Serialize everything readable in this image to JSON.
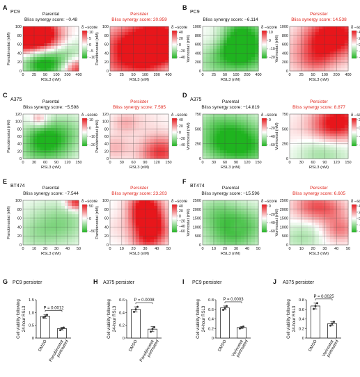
{
  "figure": {
    "panels": [
      {
        "letter": "A",
        "cell_line": "PC9",
        "xlabel": "RSL3 (nM)",
        "ylabel": "Panobinostat (nM)",
        "parent": {
          "title": "Parental",
          "score_label": "Bliss synergy score: −0.48"
        },
        "pers": {
          "title": "Persister",
          "score_label": "Bliss synergy score: 20.959"
        },
        "xticks": [
          "0",
          "25",
          "50",
          "100",
          "200",
          "400"
        ],
        "yticks": [
          "0",
          "20",
          "40",
          "60",
          "80",
          "100"
        ],
        "parent_legend": {
          "title": "δ –score",
          "ticks": [
            "10",
            "5",
            "0",
            "−5",
            "−10"
          ],
          "range": [
            -12,
            12
          ]
        },
        "pers_legend": {
          "title": "δ –score",
          "ticks": [
            "40",
            "20",
            "0",
            "−20",
            "−40"
          ],
          "range": [
            -45,
            45
          ]
        },
        "parent_blobs": [
          [
            0.12,
            0.85,
            0.3,
            25
          ],
          [
            0.95,
            0.05,
            0.2,
            15
          ],
          [
            0.5,
            0.6,
            0.25,
            6
          ],
          [
            0.3,
            0.2,
            0.25,
            -12
          ],
          [
            0.75,
            0.25,
            0.3,
            -10
          ]
        ],
        "pers_blobs": [
          [
            0.35,
            0.55,
            0.35,
            45
          ],
          [
            0.85,
            0.85,
            0.3,
            40
          ],
          [
            0.6,
            0.2,
            0.3,
            30
          ],
          [
            0.1,
            0.1,
            0.15,
            10
          ],
          [
            0.95,
            0.45,
            0.2,
            35
          ]
        ]
      },
      {
        "letter": "B",
        "cell_line": "PC9",
        "xlabel": "RSL3 (nM)",
        "ylabel": "Vorinostat (nM)",
        "parent": {
          "title": "",
          "score_label": "Bliss synergy score: −6.114"
        },
        "pers": {
          "title": "Persister",
          "score_label": "Bliss synergy score: 14.538"
        },
        "xticks": [
          "0",
          "25",
          "50",
          "100",
          "200",
          "400"
        ],
        "yticks": [
          "0",
          "200",
          "400",
          "600",
          "800",
          "1000"
        ],
        "parent_legend": {
          "title": "δ –score",
          "ticks": [
            "10",
            "0",
            "−10",
            "−20"
          ],
          "range": [
            -25,
            15
          ]
        },
        "pers_legend": {
          "title": "δ –score",
          "ticks": [
            "40",
            "20",
            "0",
            "−20",
            "−40"
          ],
          "range": [
            -45,
            45
          ]
        },
        "parent_blobs": [
          [
            0.7,
            0.8,
            0.3,
            -25
          ],
          [
            0.8,
            0.3,
            0.3,
            -18
          ],
          [
            0.25,
            0.2,
            0.3,
            -12
          ],
          [
            0.3,
            0.75,
            0.2,
            5
          ],
          [
            0.55,
            0.5,
            0.2,
            -8
          ]
        ],
        "pers_blobs": [
          [
            0.8,
            0.85,
            0.35,
            40
          ],
          [
            0.6,
            0.6,
            0.3,
            25
          ],
          [
            0.2,
            0.3,
            0.3,
            10
          ],
          [
            0.45,
            0.2,
            0.2,
            15
          ]
        ]
      },
      {
        "letter": "C",
        "cell_line": "A375",
        "xlabel": "RSL3 (nM)",
        "ylabel": "Panobinostat (nM)",
        "parent": {
          "title": "Parental",
          "score_label": "Bliss synergy score: −5.598"
        },
        "pers": {
          "title": "Persister",
          "score_label": "Bliss synergy score: 7.585"
        },
        "xticks": [
          "0",
          "30",
          "60",
          "90",
          "120",
          "150"
        ],
        "yticks": [
          "0",
          "20",
          "40",
          "60",
          "80",
          "100",
          "120"
        ],
        "parent_legend": {
          "title": "δ –score",
          "ticks": [
            "10",
            "0",
            "−10",
            "−20"
          ],
          "range": [
            -25,
            15
          ]
        },
        "pers_legend": {
          "title": "δ –score",
          "ticks": [
            "40",
            "20",
            "0",
            "−20",
            "−40"
          ],
          "range": [
            -45,
            45
          ]
        },
        "parent_blobs": [
          [
            0.3,
            0.85,
            0.12,
            12
          ],
          [
            0.3,
            0.5,
            0.25,
            -15
          ],
          [
            0.75,
            0.6,
            0.3,
            -12
          ],
          [
            0.5,
            0.2,
            0.3,
            -14
          ],
          [
            0.1,
            0.1,
            0.2,
            -5
          ]
        ],
        "pers_blobs": [
          [
            0.85,
            0.15,
            0.25,
            40
          ],
          [
            0.1,
            0.25,
            0.2,
            15
          ],
          [
            0.5,
            0.75,
            0.3,
            8
          ],
          [
            0.25,
            0.8,
            0.15,
            12
          ],
          [
            0.5,
            0.4,
            0.3,
            -5
          ]
        ]
      },
      {
        "letter": "D",
        "cell_line": "A375",
        "xlabel": "RSL3 (nM)",
        "ylabel": "Vorinostat (nM)",
        "parent": {
          "title": "Parental",
          "score_label": "Bliss synergy score: −14.819"
        },
        "pers": {
          "title": "Persister",
          "score_label": "Bliss synergy score: 8.877"
        },
        "xticks": [
          "0",
          "30",
          "60",
          "90",
          "120",
          "150"
        ],
        "yticks": [
          "0",
          "250",
          "500",
          "750"
        ],
        "parent_legend": {
          "title": "δ –score",
          "ticks": [
            "0",
            "−20",
            "−40",
            "−60"
          ],
          "range": [
            -60,
            10
          ]
        },
        "pers_legend": {
          "title": "δ –score",
          "ticks": [
            "20",
            "0",
            "−20",
            "−40"
          ],
          "range": [
            -45,
            45
          ]
        },
        "parent_blobs": [
          [
            0.55,
            0.55,
            0.4,
            -45
          ],
          [
            0.85,
            0.2,
            0.3,
            -30
          ],
          [
            0.15,
            0.85,
            0.2,
            -10
          ],
          [
            0.3,
            0.3,
            0.3,
            -25
          ]
        ],
        "pers_blobs": [
          [
            0.85,
            0.85,
            0.3,
            45
          ],
          [
            0.55,
            0.25,
            0.35,
            -25
          ],
          [
            0.2,
            0.5,
            0.3,
            10
          ],
          [
            0.65,
            0.6,
            0.25,
            20
          ]
        ]
      },
      {
        "letter": "E",
        "cell_line": "BT474",
        "xlabel": "RSL3 (nM)",
        "ylabel": "Panobinostat (nM)",
        "parent": {
          "title": "Parental",
          "score_label": "Bliss synergy score: −7.544"
        },
        "pers": {
          "title": "Persister",
          "score_label": "Bliss synergy score: 23.203"
        },
        "xticks": [
          "0",
          "10",
          "20",
          "30",
          "40",
          "50"
        ],
        "yticks": [
          "0",
          "20",
          "40",
          "60",
          "80",
          "100"
        ],
        "parent_legend": {
          "title": "δ –score",
          "ticks": [
            "50",
            "0",
            "−50"
          ],
          "range": [
            -60,
            60
          ]
        },
        "pers_legend": {
          "title": "δ –score",
          "ticks": [
            "40",
            "20",
            "0",
            "−20",
            "−40",
            "−60"
          ],
          "range": [
            -60,
            45
          ]
        },
        "parent_blobs": [
          [
            0.95,
            0.95,
            0.12,
            60
          ],
          [
            0.5,
            0.45,
            0.4,
            -20
          ],
          [
            0.2,
            0.2,
            0.3,
            -12
          ],
          [
            0.8,
            0.5,
            0.3,
            -15
          ]
        ],
        "pers_blobs": [
          [
            0.65,
            0.55,
            0.2,
            55
          ],
          [
            0.6,
            0.9,
            0.2,
            45
          ],
          [
            0.65,
            0.15,
            0.2,
            40
          ],
          [
            0.15,
            0.4,
            0.2,
            5
          ],
          [
            0.9,
            0.3,
            0.15,
            10
          ]
        ]
      },
      {
        "letter": "F",
        "cell_line": "BT474",
        "xlabel": "RSL3 (nM)",
        "ylabel": "Vorinostat (nM)",
        "parent": {
          "title": "Parental",
          "score_label": "Bliss synergy score: −15.596"
        },
        "pers": {
          "title": "Persister",
          "score_label": "Bliss synergy score: 6.605"
        },
        "xticks": [
          "0",
          "10",
          "20",
          "30",
          "40",
          "50"
        ],
        "yticks": [
          "0",
          "500",
          "1000",
          "1500",
          "2000",
          "2500"
        ],
        "parent_legend": {
          "title": "δ –score",
          "ticks": [
            "0",
            "−20",
            "−40",
            "−60"
          ],
          "range": [
            -60,
            10
          ]
        },
        "pers_legend": {
          "title": "δ –score",
          "ticks": [
            "40",
            "20",
            "0",
            "−20",
            "−40"
          ],
          "range": [
            -45,
            45
          ]
        },
        "parent_blobs": [
          [
            0.5,
            0.25,
            0.35,
            -40
          ],
          [
            0.25,
            0.75,
            0.3,
            -25
          ],
          [
            0.85,
            0.5,
            0.3,
            -20
          ],
          [
            0.6,
            0.4,
            0.1,
            8
          ]
        ],
        "pers_blobs": [
          [
            0.4,
            0.85,
            0.25,
            30
          ],
          [
            0.85,
            0.35,
            0.2,
            25
          ],
          [
            0.75,
            0.8,
            0.2,
            15
          ],
          [
            0.2,
            0.15,
            0.25,
            -15
          ],
          [
            0.35,
            0.4,
            0.2,
            -5
          ]
        ]
      }
    ],
    "barcharts": [
      {
        "letter": "G",
        "title": "PC9 persister",
        "ylabel": [
          "Cell viability following",
          "24-hour RSL3"
        ],
        "yticks": [
          "0",
          "0.5",
          "1.0",
          "1.5"
        ],
        "ymax": 1.5,
        "categories": [
          [
            "DMSO"
          ],
          [
            "Panobinostat",
            "pretreated"
          ]
        ],
        "values": [
          0.85,
          0.37
        ],
        "errors": [
          0.07,
          0.05
        ],
        "points": [
          [
            0.8,
            0.85,
            0.91
          ],
          [
            0.31,
            0.37,
            0.41
          ]
        ],
        "pvalue": "P = 0.0012"
      },
      {
        "letter": "H",
        "title": "A375 persister",
        "ylabel": [
          "Cell viability following",
          "24-hour RSL3"
        ],
        "yticks": [
          "0",
          "0.2",
          "0.4",
          "0.6"
        ],
        "ymax": 0.6,
        "categories": [
          [
            "DMSO"
          ],
          [
            "Panobinostat",
            "pretreated"
          ]
        ],
        "values": [
          0.45,
          0.14
        ],
        "errors": [
          0.04,
          0.04
        ],
        "points": [
          [
            0.41,
            0.45,
            0.49
          ],
          [
            0.1,
            0.14,
            0.17
          ]
        ],
        "pvalue": "P = 0.0008"
      },
      {
        "letter": "I",
        "title": "PC9 persister",
        "ylabel": [
          "Cell viability following",
          "24-hour RSL3"
        ],
        "yticks": [
          "0",
          "0.2",
          "0.4",
          "0.6",
          "0.8"
        ],
        "ymax": 0.8,
        "categories": [
          [
            "DMSO"
          ],
          [
            "Vorinostat",
            "pretreated"
          ]
        ],
        "values": [
          0.63,
          0.22
        ],
        "errors": [
          0.04,
          0.02
        ],
        "points": [
          [
            0.59,
            0.63,
            0.67
          ],
          [
            0.2,
            0.22,
            0.24
          ]
        ],
        "pvalue": "P = 0.0003"
      },
      {
        "letter": "J",
        "title": "A375 persister",
        "ylabel": [
          "Cell viability following",
          "24-hour RSL3"
        ],
        "yticks": [
          "0",
          "0.2",
          "0.4",
          "0.6",
          "0.8"
        ],
        "ymax": 0.8,
        "categories": [
          [
            "DMSO"
          ],
          [
            "Vorinostat",
            "pretreated"
          ]
        ],
        "values": [
          0.67,
          0.3
        ],
        "errors": [
          0.06,
          0.04
        ],
        "points": [
          [
            0.61,
            0.67,
            0.73
          ],
          [
            0.26,
            0.3,
            0.34
          ]
        ],
        "pvalue": "P = 0.0025"
      }
    ]
  },
  "chart_data": [
    {
      "type": "bar",
      "title": "PC9 persister",
      "categories": [
        "DMSO",
        "Panobinostat pretreated"
      ],
      "values": [
        0.85,
        0.37
      ],
      "ylabel": "Cell viability following 24-hour RSL3",
      "ylim": [
        0,
        1.5
      ],
      "annotations": [
        "P = 0.0012"
      ]
    },
    {
      "type": "bar",
      "title": "A375 persister",
      "categories": [
        "DMSO",
        "Panobinostat pretreated"
      ],
      "values": [
        0.45,
        0.14
      ],
      "ylabel": "Cell viability following 24-hour RSL3",
      "ylim": [
        0,
        0.6
      ],
      "annotations": [
        "P = 0.0008"
      ]
    },
    {
      "type": "bar",
      "title": "PC9 persister",
      "categories": [
        "DMSO",
        "Vorinostat pretreated"
      ],
      "values": [
        0.63,
        0.22
      ],
      "ylabel": "Cell viability following 24-hour RSL3",
      "ylim": [
        0,
        0.8
      ],
      "annotations": [
        "P = 0.0003"
      ]
    },
    {
      "type": "bar",
      "title": "A375 persister",
      "categories": [
        "DMSO",
        "Vorinostat pretreated"
      ],
      "values": [
        0.67,
        0.3
      ],
      "ylabel": "Cell viability following 24-hour RSL3",
      "ylim": [
        0,
        0.8
      ],
      "annotations": [
        "P = 0.0025"
      ]
    }
  ],
  "colors": {
    "positive": "#e8161b",
    "negative": "#1fb41f",
    "persister_text": "#e0241b",
    "text": "#111111"
  }
}
